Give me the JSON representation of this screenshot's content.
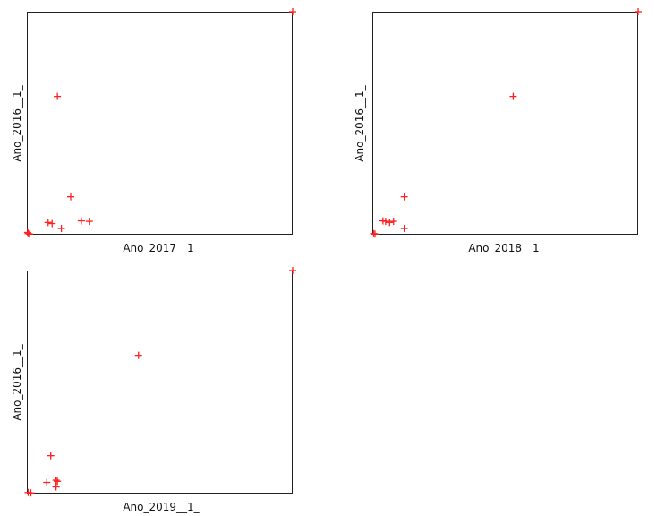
{
  "marker_color": "#ff2020",
  "chart_data": [
    {
      "type": "scatter",
      "xlabel": "Ano_2017__1_",
      "ylabel": "Ano_2016__1_",
      "xlim": [
        0,
        100
      ],
      "ylim": [
        0,
        100
      ],
      "points": [
        {
          "x": 0.5,
          "y": 0.5
        },
        {
          "x": 1,
          "y": 0.3
        },
        {
          "x": 0.3,
          "y": 1
        },
        {
          "x": 11.5,
          "y": 62
        },
        {
          "x": 16.5,
          "y": 17
        },
        {
          "x": 8,
          "y": 5.5
        },
        {
          "x": 9.5,
          "y": 5
        },
        {
          "x": 13,
          "y": 2.8
        },
        {
          "x": 20.5,
          "y": 6.2
        },
        {
          "x": 23.5,
          "y": 6
        },
        {
          "x": 100,
          "y": 100
        }
      ]
    },
    {
      "type": "scatter",
      "xlabel": "Ano_2018__1_",
      "ylabel": "Ano_2016__1_",
      "xlim": [
        0,
        100
      ],
      "ylim": [
        0,
        100
      ],
      "points": [
        {
          "x": 0.5,
          "y": 0.5
        },
        {
          "x": 1,
          "y": 0.3
        },
        {
          "x": 4,
          "y": 6.2
        },
        {
          "x": 5,
          "y": 6
        },
        {
          "x": 6.5,
          "y": 5.5
        },
        {
          "x": 8,
          "y": 6
        },
        {
          "x": 12,
          "y": 17
        },
        {
          "x": 12,
          "y": 2.8
        },
        {
          "x": 53,
          "y": 62
        },
        {
          "x": 100,
          "y": 100
        }
      ]
    },
    {
      "type": "scatter",
      "xlabel": "Ano_2019__1_",
      "ylabel": "Ano_2016__1_",
      "xlim": [
        0,
        100
      ],
      "ylim": [
        0,
        100
      ],
      "points": [
        {
          "x": 0.5,
          "y": 0.5
        },
        {
          "x": 1.5,
          "y": 0.3
        },
        {
          "x": 7.5,
          "y": 5
        },
        {
          "x": 9,
          "y": 17
        },
        {
          "x": 11,
          "y": 6
        },
        {
          "x": 11.5,
          "y": 5.5
        },
        {
          "x": 11,
          "y": 3
        },
        {
          "x": 42,
          "y": 62
        },
        {
          "x": 100,
          "y": 100
        }
      ]
    }
  ]
}
